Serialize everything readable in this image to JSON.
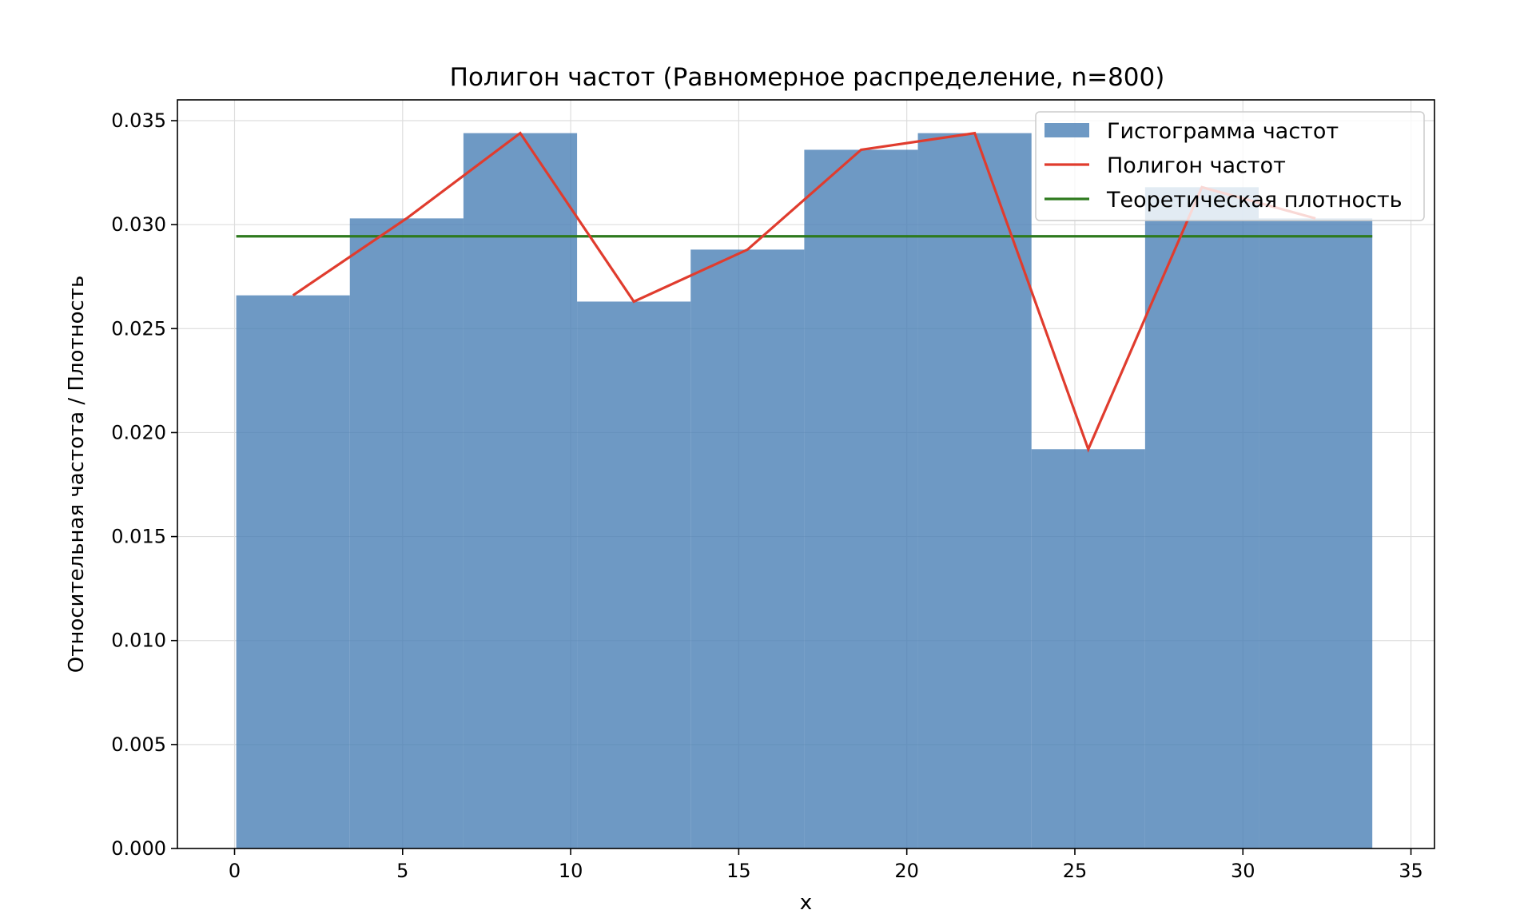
{
  "chart_data": {
    "type": "bar",
    "title": "Полигон частот (Равномерное распределение, n=800)",
    "xlabel": "x",
    "ylabel": "Относительная частота / Плотность",
    "xlim": [
      -1.7,
      35.7
    ],
    "ylim": [
      0,
      0.036
    ],
    "xticks": [
      0,
      5,
      10,
      15,
      20,
      25,
      30,
      35
    ],
    "yticks": [
      0.0,
      0.005,
      0.01,
      0.015,
      0.02,
      0.025,
      0.03,
      0.035
    ],
    "ytick_labels": [
      "0.000",
      "0.005",
      "0.010",
      "0.015",
      "0.020",
      "0.025",
      "0.030",
      "0.035"
    ],
    "grid": true,
    "legend_position": "upper right",
    "histogram": {
      "name": "Гистограмма частот",
      "color": "#4a7fb5",
      "bin_edges": [
        0.05,
        3.43,
        6.81,
        10.19,
        13.57,
        16.95,
        20.33,
        23.71,
        27.09,
        30.47,
        33.85
      ],
      "values": [
        0.0266,
        0.0303,
        0.0344,
        0.0263,
        0.0288,
        0.0336,
        0.0344,
        0.0192,
        0.0318,
        0.0303
      ]
    },
    "polygon": {
      "name": "Полигон частот",
      "color": "#e03c2e",
      "x": [
        1.74,
        5.12,
        8.5,
        11.88,
        15.26,
        18.64,
        22.02,
        25.4,
        28.78,
        32.16
      ],
      "y": [
        0.0266,
        0.0303,
        0.0344,
        0.0263,
        0.0288,
        0.0336,
        0.0344,
        0.0192,
        0.0318,
        0.0303
      ]
    },
    "theoretical": {
      "name": "Теоретическая плотность",
      "color": "#2e7a1e",
      "x": [
        0.05,
        33.85
      ],
      "y": [
        0.02944,
        0.02944
      ]
    }
  }
}
